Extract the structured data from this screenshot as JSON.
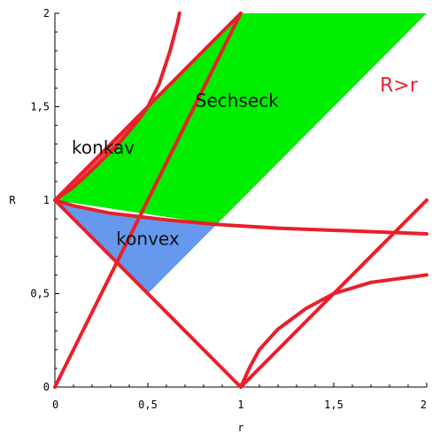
{
  "chart_data": {
    "type": "area",
    "title": "",
    "xlabel": "r",
    "ylabel": "R",
    "xlim": [
      0,
      2
    ],
    "ylim": [
      0,
      2
    ],
    "x_ticks": [
      0,
      0.5,
      1,
      1.5,
      2
    ],
    "y_ticks": [
      0,
      0.5,
      1,
      1.5,
      2
    ],
    "x_tick_labels": [
      "0",
      "0,5",
      "1",
      "1,5",
      "2"
    ],
    "y_tick_labels": [
      "0",
      "0,5",
      "1",
      "1,5",
      "2"
    ],
    "grid": false,
    "colors": {
      "curve": "#e8202a",
      "sechseck": "#00ee00",
      "konvex": "#6699ee",
      "konkav": "#ee5544"
    },
    "regions": [
      {
        "name": "Sechseck",
        "label": "Sechseck",
        "color": "#00ee00",
        "polygon": [
          [
            0,
            1
          ],
          [
            0.87,
            0.87
          ],
          [
            2,
            2
          ],
          [
            1,
            2
          ],
          [
            0.5,
            1.5
          ]
        ]
      },
      {
        "name": "konvex",
        "label": "konvex",
        "color": "#6699ee",
        "polygon": [
          [
            0,
            1
          ],
          [
            0.5,
            0.5
          ],
          [
            0.87,
            0.87
          ],
          [
            0.6,
            0.895
          ],
          [
            0.3,
            0.93
          ],
          [
            0.1,
            0.97
          ]
        ]
      },
      {
        "name": "konkav",
        "label": "konkav",
        "color": "#ee5544",
        "polygon": [
          [
            0,
            1
          ],
          [
            0.5,
            1.5
          ],
          [
            0.35,
            1.31
          ],
          [
            0.22,
            1.18
          ],
          [
            0.1,
            1.07
          ]
        ]
      }
    ],
    "series": [
      {
        "points": [
          [
            0,
            0
          ],
          [
            1,
            2
          ]
        ]
      },
      {
        "points": [
          [
            0,
            1
          ],
          [
            1,
            2
          ]
        ]
      },
      {
        "points": [
          [
            0,
            1
          ],
          [
            1,
            0
          ]
        ]
      },
      {
        "points": [
          [
            1,
            0
          ],
          [
            2,
            1
          ]
        ]
      },
      {
        "points": [
          [
            0,
            1
          ],
          [
            0.1,
            0.97
          ],
          [
            0.3,
            0.93
          ],
          [
            0.6,
            0.895
          ],
          [
            0.87,
            0.87
          ],
          [
            1.2,
            0.85
          ],
          [
            1.6,
            0.835
          ],
          [
            2,
            0.82
          ]
        ]
      },
      {
        "points": [
          [
            0,
            1
          ],
          [
            0.1,
            1.07
          ],
          [
            0.22,
            1.18
          ],
          [
            0.35,
            1.31
          ],
          [
            0.45,
            1.43
          ],
          [
            0.5,
            1.5
          ],
          [
            0.56,
            1.62
          ],
          [
            0.62,
            1.8
          ],
          [
            0.66,
            1.95
          ],
          [
            0.67,
            2
          ]
        ]
      },
      {
        "points": [
          [
            1,
            0
          ],
          [
            1.05,
            0.11
          ],
          [
            1.1,
            0.2
          ],
          [
            1.2,
            0.31
          ],
          [
            1.35,
            0.42
          ],
          [
            1.5,
            0.5
          ],
          [
            1.7,
            0.56
          ],
          [
            2,
            0.6
          ]
        ]
      }
    ],
    "annotations": [
      {
        "text": "Sechseck",
        "x": 0.98,
        "y": 1.5
      },
      {
        "text": "konkav",
        "x": 0.26,
        "y": 1.25
      },
      {
        "text": "konvex",
        "x": 0.5,
        "y": 0.76
      },
      {
        "text": "R>r",
        "x": 1.85,
        "y": 1.58
      }
    ]
  }
}
